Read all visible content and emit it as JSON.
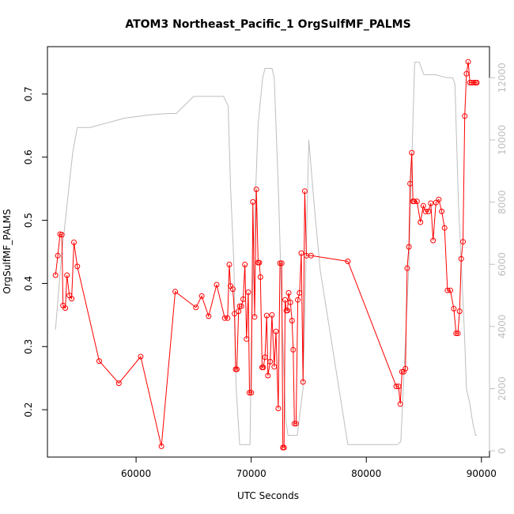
{
  "chart_data": {
    "type": "line",
    "title": "ATOM3 Northeast_Pacific_1 OrgSulfMF_PALMS",
    "xlabel": "UTC Seconds",
    "ylabel": "OrgSulfMF_PALMS",
    "xlim": [
      52300,
      90700
    ],
    "ylim": [
      0.125,
      0.775
    ],
    "y2lim": [
      -200,
      13000
    ],
    "x_ticks": [
      60000,
      70000,
      80000,
      90000
    ],
    "x_tick_labels": [
      "60000",
      "70000",
      "80000",
      "90000"
    ],
    "y_ticks": [
      0.2,
      0.3,
      0.4,
      0.5,
      0.6,
      0.7
    ],
    "y_tick_labels": [
      "0.2",
      "0.3",
      "0.4",
      "0.5",
      "0.6",
      "0.7"
    ],
    "y2_ticks": [
      0,
      2000,
      4000,
      6000,
      8000,
      10000,
      12000
    ],
    "y2_tick_labels": [
      "0",
      "2000",
      "4000",
      "6000",
      "8000",
      "10000",
      "12000"
    ],
    "grid": false,
    "legend": "none",
    "series": [
      {
        "axis": "left",
        "color": "#ff0000",
        "style": "line+open-circles",
        "x": [
          53000,
          53200,
          53400,
          53550,
          53650,
          53850,
          54000,
          54200,
          54400,
          54600,
          54900,
          56800,
          58500,
          60400,
          62200,
          63400,
          65200,
          65700,
          66300,
          67000,
          67700,
          67950,
          68100,
          68200,
          68400,
          68550,
          68650,
          68750,
          68900,
          69000,
          69150,
          69300,
          69450,
          69600,
          69750,
          69850,
          70000,
          70150,
          70300,
          70450,
          70600,
          70700,
          70800,
          70950,
          71050,
          71200,
          71350,
          71450,
          71650,
          71800,
          72000,
          72150,
          72350,
          72500,
          72650,
          72750,
          72850,
          72950,
          73050,
          73150,
          73250,
          73400,
          73550,
          73650,
          73750,
          73900,
          74050,
          74200,
          74350,
          74500,
          74650,
          74800,
          75200,
          78400,
          82600,
          82800,
          82950,
          83100,
          83250,
          83400,
          83550,
          83700,
          83800,
          83950,
          84050,
          84150,
          84400,
          84700,
          84950,
          85150,
          85400,
          85600,
          85800,
          86050,
          86300,
          86550,
          86800,
          87050,
          87300,
          87600,
          87800,
          87950,
          88100,
          88250,
          88400,
          88550,
          88700,
          88850,
          89000,
          89150,
          89350,
          89500,
          89600
        ],
        "y": [
          0.413,
          0.444,
          0.478,
          0.477,
          0.365,
          0.361,
          0.413,
          0.381,
          0.376,
          0.465,
          0.427,
          0.277,
          0.242,
          0.284,
          0.142,
          0.387,
          0.362,
          0.38,
          0.348,
          0.398,
          0.345,
          0.345,
          0.43,
          0.396,
          0.391,
          0.352,
          0.264,
          0.264,
          0.356,
          0.364,
          0.364,
          0.375,
          0.43,
          0.312,
          0.386,
          0.227,
          0.227,
          0.529,
          0.347,
          0.549,
          0.433,
          0.433,
          0.41,
          0.267,
          0.267,
          0.283,
          0.349,
          0.254,
          0.276,
          0.35,
          0.268,
          0.324,
          0.202,
          0.432,
          0.432,
          0.14,
          0.14,
          0.374,
          0.357,
          0.357,
          0.385,
          0.37,
          0.341,
          0.295,
          0.178,
          0.178,
          0.374,
          0.385,
          0.448,
          0.244,
          0.546,
          0.444,
          0.444,
          0.435,
          0.237,
          0.237,
          0.209,
          0.26,
          0.26,
          0.265,
          0.424,
          0.458,
          0.558,
          0.607,
          0.53,
          0.53,
          0.53,
          0.497,
          0.523,
          0.514,
          0.514,
          0.527,
          0.468,
          0.528,
          0.533,
          0.514,
          0.488,
          0.389,
          0.389,
          0.36,
          0.321,
          0.321,
          0.356,
          0.439,
          0.466,
          0.665,
          0.732,
          0.751,
          0.718,
          0.718,
          0.718,
          0.718,
          0.718
        ]
      },
      {
        "axis": "right",
        "color": "#bebebe",
        "style": "line",
        "x": [
          53000,
          53500,
          54000,
          54500,
          54900,
          56000,
          57000,
          58000,
          59000,
          60000,
          61000,
          62000,
          63000,
          63500,
          65000,
          66000,
          67000,
          67600,
          68000,
          68200,
          68500,
          68700,
          69000,
          69300,
          69600,
          69900,
          70000,
          70200,
          70400,
          70600,
          71000,
          71200,
          71500,
          71800,
          72000,
          72400,
          72700,
          73000,
          73200,
          73500,
          73800,
          74000,
          74500,
          75000,
          75500,
          76000,
          78400,
          82700,
          83000,
          83400,
          83700,
          84000,
          84200,
          84600,
          85000,
          86000,
          87000,
          87500,
          87700,
          88000,
          88500,
          88700,
          89000,
          89200,
          89300,
          89500,
          89600
        ],
        "y": [
          3900,
          6200,
          7900,
          9600,
          10400,
          10400,
          10500,
          10600,
          10700,
          10750,
          10800,
          10830,
          10850,
          10850,
          11400,
          11400,
          11400,
          11400,
          11100,
          8500,
          6000,
          2000,
          200,
          200,
          200,
          200,
          3500,
          6000,
          8500,
          10500,
          12000,
          12300,
          12300,
          12300,
          12000,
          8000,
          4000,
          1000,
          500,
          500,
          500,
          500,
          2000,
          10000,
          7800,
          5800,
          200,
          200,
          300,
          3500,
          6000,
          10000,
          12500,
          12500,
          12100,
          12100,
          12000,
          12000,
          11800,
          8000,
          4000,
          2000,
          1500,
          1000,
          800,
          500,
          500
        ]
      }
    ]
  }
}
